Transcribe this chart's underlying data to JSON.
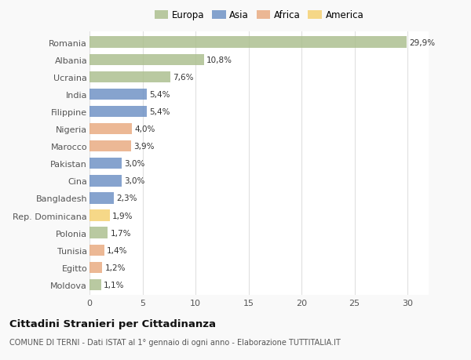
{
  "categories": [
    "Moldova",
    "Egitto",
    "Tunisia",
    "Polonia",
    "Rep. Dominicana",
    "Bangladesh",
    "Cina",
    "Pakistan",
    "Marocco",
    "Nigeria",
    "Filippine",
    "India",
    "Ucraina",
    "Albania",
    "Romania"
  ],
  "values": [
    1.1,
    1.2,
    1.4,
    1.7,
    1.9,
    2.3,
    3.0,
    3.0,
    3.9,
    4.0,
    5.4,
    5.4,
    7.6,
    10.8,
    29.9
  ],
  "labels": [
    "1,1%",
    "1,2%",
    "1,4%",
    "1,7%",
    "1,9%",
    "2,3%",
    "3,0%",
    "3,0%",
    "3,9%",
    "4,0%",
    "5,4%",
    "5,4%",
    "7,6%",
    "10,8%",
    "29,9%"
  ],
  "colors": [
    "#aabe8c",
    "#e8a97e",
    "#e8a97e",
    "#aabe8c",
    "#f5d06e",
    "#6b8fc4",
    "#6b8fc4",
    "#6b8fc4",
    "#e8a97e",
    "#e8a97e",
    "#6b8fc4",
    "#6b8fc4",
    "#aabe8c",
    "#aabe8c",
    "#aabe8c"
  ],
  "continent_colors": {
    "Europa": "#aabe8c",
    "Asia": "#6b8fc4",
    "Africa": "#e8a97e",
    "America": "#f5d06e"
  },
  "title": "Cittadini Stranieri per Cittadinanza",
  "subtitle": "COMUNE DI TERNI - Dati ISTAT al 1° gennaio di ogni anno - Elaborazione TUTTITALIA.IT",
  "xlim": [
    0,
    32
  ],
  "xticks": [
    0,
    5,
    10,
    15,
    20,
    25,
    30
  ],
  "background_color": "#f9f9f9",
  "bar_background": "#ffffff",
  "grid_color": "#e0e0e0"
}
